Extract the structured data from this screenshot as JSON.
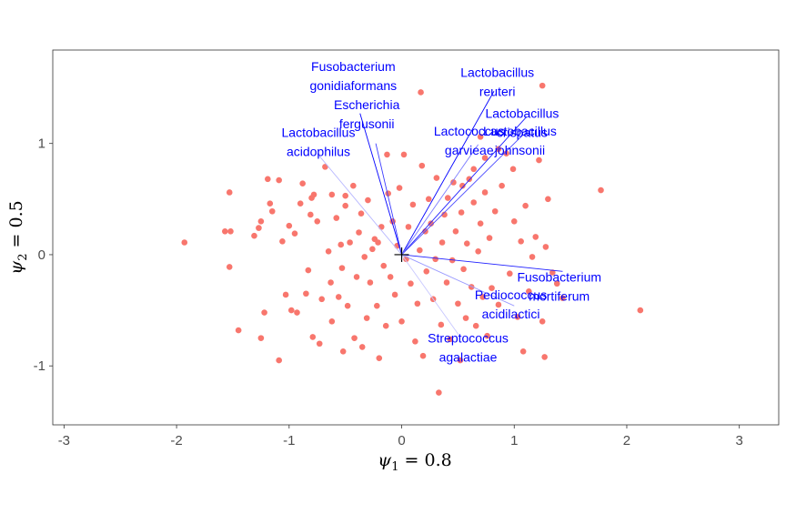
{
  "chart_data": {
    "type": "scatter",
    "title": "",
    "xlabel": "ψ₁ = 0.8",
    "ylabel": "ψ₂ = 0.5",
    "xlabel_parts": {
      "symbol": "ψ",
      "sub": "1",
      "rest": " = 0.8"
    },
    "ylabel_parts": {
      "symbol": "ψ",
      "sub": "2",
      "rest": " = 0.5"
    },
    "xlim": [
      -3.1,
      3.35
    ],
    "ylim": [
      -1.53,
      1.84
    ],
    "xticks": [
      -3,
      -2,
      -1,
      0,
      1,
      2,
      3
    ],
    "xtick_labels": [
      "-3",
      "-2",
      "-1",
      "0",
      "1",
      "2",
      "3"
    ],
    "yticks": [
      -1,
      0,
      1
    ],
    "ytick_labels": [
      "-1",
      "0",
      "1"
    ],
    "grid": false,
    "point_color": "#f8766d",
    "arrow_color": "#0000ff",
    "origin_marker": "+",
    "points": [
      [
        -1.93,
        0.11
      ],
      [
        -1.57,
        0.21
      ],
      [
        -1.52,
        0.21
      ],
      [
        -1.53,
        0.56
      ],
      [
        -1.53,
        -0.11
      ],
      [
        -1.45,
        -0.68
      ],
      [
        -1.31,
        0.17
      ],
      [
        -1.27,
        0.24
      ],
      [
        -1.25,
        0.3
      ],
      [
        -1.25,
        -0.75
      ],
      [
        -1.22,
        -0.52
      ],
      [
        -1.19,
        0.68
      ],
      [
        -1.17,
        0.46
      ],
      [
        -1.15,
        0.39
      ],
      [
        -1.09,
        0.67
      ],
      [
        -1.09,
        -0.95
      ],
      [
        -1.06,
        0.12
      ],
      [
        -1.03,
        -0.36
      ],
      [
        -1.0,
        0.26
      ],
      [
        -0.98,
        -0.5
      ],
      [
        -0.95,
        0.19
      ],
      [
        -0.93,
        -0.52
      ],
      [
        -0.9,
        0.46
      ],
      [
        -0.88,
        0.64
      ],
      [
        -0.85,
        -0.35
      ],
      [
        -0.83,
        -0.14
      ],
      [
        -0.81,
        0.36
      ],
      [
        -0.8,
        0.51
      ],
      [
        -0.79,
        -0.74
      ],
      [
        -0.78,
        0.54
      ],
      [
        -0.75,
        0.3
      ],
      [
        -0.73,
        -0.8
      ],
      [
        -0.71,
        -0.4
      ],
      [
        -0.68,
        0.79
      ],
      [
        -0.65,
        0.03
      ],
      [
        -0.63,
        -0.25
      ],
      [
        -0.62,
        -0.6
      ],
      [
        -0.58,
        0.33
      ],
      [
        -0.56,
        -0.38
      ],
      [
        -0.54,
        0.09
      ],
      [
        -0.53,
        -0.12
      ],
      [
        -0.52,
        -0.87
      ],
      [
        -0.5,
        0.44
      ],
      [
        -0.48,
        -0.46
      ],
      [
        -0.46,
        0.11
      ],
      [
        -0.43,
        0.62
      ],
      [
        -0.42,
        -0.75
      ],
      [
        -0.4,
        -0.2
      ],
      [
        -0.38,
        0.2
      ],
      [
        -0.36,
        0.37
      ],
      [
        -0.35,
        -0.83
      ],
      [
        -0.33,
        -0.02
      ],
      [
        -0.31,
        -0.57
      ],
      [
        -0.3,
        0.49
      ],
      [
        -0.28,
        -0.25
      ],
      [
        -0.26,
        0.05
      ],
      [
        -0.24,
        0.14
      ],
      [
        -0.22,
        -0.46
      ],
      [
        -0.2,
        -0.93
      ],
      [
        -0.18,
        0.25
      ],
      [
        -0.16,
        -0.1
      ],
      [
        -0.14,
        -0.64
      ],
      [
        -0.12,
        0.55
      ],
      [
        -0.1,
        -0.2
      ],
      [
        -0.08,
        0.3
      ],
      [
        -0.06,
        -0.36
      ],
      [
        -0.04,
        0.08
      ],
      [
        -0.02,
        0.6
      ],
      [
        0.0,
        -0.6
      ],
      [
        0.02,
        0.9
      ],
      [
        0.04,
        -0.04
      ],
      [
        0.06,
        0.25
      ],
      [
        0.08,
        -0.26
      ],
      [
        0.1,
        0.45
      ],
      [
        0.12,
        -0.78
      ],
      [
        0.14,
        -0.44
      ],
      [
        0.16,
        0.04
      ],
      [
        0.18,
        0.8
      ],
      [
        0.19,
        -0.91
      ],
      [
        0.21,
        0.21
      ],
      [
        0.22,
        -0.15
      ],
      [
        0.24,
        0.5
      ],
      [
        0.26,
        0.28
      ],
      [
        0.28,
        -0.4
      ],
      [
        0.3,
        -0.04
      ],
      [
        0.31,
        0.69
      ],
      [
        0.33,
        -1.24
      ],
      [
        0.35,
        -0.63
      ],
      [
        0.36,
        0.11
      ],
      [
        0.38,
        0.36
      ],
      [
        0.4,
        -0.25
      ],
      [
        0.41,
        0.51
      ],
      [
        0.43,
        -0.76
      ],
      [
        0.45,
        -0.05
      ],
      [
        0.46,
        0.65
      ],
      [
        0.48,
        0.21
      ],
      [
        0.5,
        -0.44
      ],
      [
        0.52,
        -0.95
      ],
      [
        0.53,
        0.38
      ],
      [
        0.55,
        -0.13
      ],
      [
        0.57,
        -0.57
      ],
      [
        0.58,
        0.1
      ],
      [
        0.6,
        0.68
      ],
      [
        0.62,
        -0.29
      ],
      [
        0.64,
        0.47
      ],
      [
        0.66,
        -0.64
      ],
      [
        0.68,
        0.03
      ],
      [
        0.7,
        0.28
      ],
      [
        0.72,
        -0.38
      ],
      [
        0.74,
        0.56
      ],
      [
        0.76,
        -0.73
      ],
      [
        0.78,
        0.15
      ],
      [
        0.8,
        -0.3
      ],
      [
        0.83,
        0.39
      ],
      [
        0.86,
        -0.45
      ],
      [
        0.89,
        0.62
      ],
      [
        0.93,
        0.91
      ],
      [
        0.96,
        -0.17
      ],
      [
        1.0,
        0.3
      ],
      [
        1.03,
        -0.56
      ],
      [
        1.06,
        0.12
      ],
      [
        1.08,
        -0.87
      ],
      [
        1.1,
        0.44
      ],
      [
        1.13,
        -0.33
      ],
      [
        1.16,
        -0.02
      ],
      [
        1.19,
        0.16
      ],
      [
        1.22,
        0.85
      ],
      [
        1.25,
        -0.6
      ],
      [
        1.25,
        1.52
      ],
      [
        1.27,
        -0.92
      ],
      [
        1.28,
        0.07
      ],
      [
        1.3,
        0.5
      ],
      [
        1.34,
        -0.16
      ],
      [
        1.38,
        -0.26
      ],
      [
        1.43,
        -0.39
      ],
      [
        1.77,
        0.58
      ],
      [
        2.12,
        -0.5
      ],
      [
        0.17,
        1.46
      ],
      [
        0.7,
        1.06
      ],
      [
        0.64,
        0.77
      ],
      [
        0.54,
        0.62
      ],
      [
        0.74,
        0.87
      ],
      [
        0.86,
        0.95
      ],
      [
        0.99,
        0.77
      ],
      [
        -0.5,
        0.53
      ],
      [
        -0.62,
        0.54
      ],
      [
        -0.21,
        0.11
      ],
      [
        -0.13,
        0.9
      ]
    ],
    "arrows": [
      {
        "end": [
          -0.37,
          1.27
        ],
        "label_lines": [
          "Fusobacterium",
          "gonidiaformans"
        ],
        "label_pos": [
          -0.43,
          1.65
        ],
        "shade": "#0000ff"
      },
      {
        "end": [
          -0.23,
          1.0
        ],
        "label_lines": [
          "Escherichia",
          "fergusonii"
        ],
        "label_pos": [
          -0.31,
          1.31
        ],
        "shade": "#3a3aff"
      },
      {
        "end": [
          -0.75,
          0.91
        ],
        "label_lines": [
          "Lactobacillus",
          "acidophilus"
        ],
        "label_pos": [
          -0.74,
          1.06
        ],
        "shade": "#b8b8ff"
      },
      {
        "end": [
          0.82,
          1.47
        ],
        "label_lines": [
          "Lactobacillus",
          "reuteri"
        ],
        "label_pos": [
          0.85,
          1.6
        ],
        "shade": "#0000ff"
      },
      {
        "end": [
          1.11,
          1.24
        ],
        "label_lines": [
          "Lactobacillus",
          "crispatus"
        ],
        "label_pos": [
          1.07,
          1.23
        ],
        "shade": "#2020ff"
      },
      {
        "end": [
          1.08,
          1.08
        ],
        "label_lines": [
          "Lactobacillus",
          "johnsonii"
        ],
        "label_pos": [
          1.05,
          1.07
        ],
        "shade": "#4a4aff"
      },
      {
        "end": [
          0.68,
          0.99
        ],
        "label_lines": [
          "Lactococcus",
          "garvieae"
        ],
        "label_pos": [
          0.6,
          1.07
        ],
        "shade": "#7a7aff"
      },
      {
        "end": [
          1.43,
          -0.15
        ],
        "label_lines": [
          "Fusobacterium",
          "mortiferum"
        ],
        "label_pos": [
          1.4,
          -0.24
        ],
        "shade": "#2020ff"
      },
      {
        "end": [
          1.0,
          -0.46
        ],
        "label_lines": [
          "Pediococcus",
          "acidilactici"
        ],
        "label_pos": [
          0.97,
          -0.4
        ],
        "shade": "#9a9aff"
      },
      {
        "end": [
          0.52,
          -0.74
        ],
        "label_lines": [
          "Streptococcus",
          "agalactiae"
        ],
        "label_pos": [
          0.59,
          -0.79
        ],
        "shade": "#c8c8ff"
      }
    ]
  }
}
